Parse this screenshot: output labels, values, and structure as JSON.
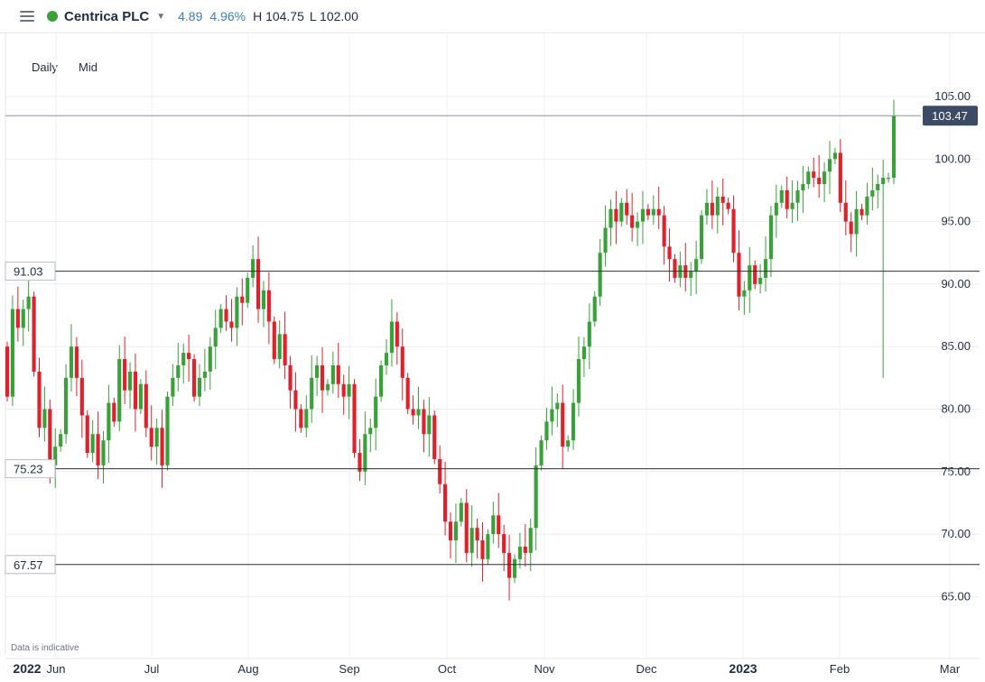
{
  "header": {
    "instrument": "Centrica PLC",
    "change": "4.89",
    "change_pct": "4.96%",
    "high_label": "H 104.75",
    "low_label": "L 102.00",
    "status_color": "#3aa13a"
  },
  "controls": {
    "interval": "Daily",
    "price_type": "Mid"
  },
  "footer": {
    "indicative": "Data is indicative"
  },
  "colors": {
    "up": "#3aa13a",
    "down": "#e0202a",
    "current_price_bg": "#3d4a66"
  },
  "chart_data": {
    "type": "candlestick",
    "ylim": [
      62,
      109
    ],
    "y_ticks": [
      "65.00",
      "70.00",
      "75.00",
      "80.00",
      "85.00",
      "90.00",
      "95.00",
      "100.00",
      "105.00"
    ],
    "x_labels": [
      "2022",
      "Jun",
      "Jul",
      "Aug",
      "Sep",
      "Oct",
      "Nov",
      "Dec",
      "2023",
      "Feb",
      "Mar"
    ],
    "current_price": 103.47,
    "current_price_label": "103.47",
    "levels": [
      {
        "value": 91.03,
        "label": "91.03"
      },
      {
        "value": 75.23,
        "label": "75.23"
      },
      {
        "value": 67.57,
        "label": "67.57"
      }
    ],
    "closes": [
      81.0,
      88.0,
      86.5,
      88.0,
      89.0,
      83.0,
      78.5,
      80.0,
      75.5,
      77.0,
      78.0,
      82.5,
      85.0,
      82.5,
      79.5,
      76.5,
      78.0,
      75.5,
      77.5,
      80.5,
      79.0,
      84.0,
      81.5,
      83.0,
      80.0,
      82.0,
      78.5,
      77.0,
      78.5,
      75.5,
      81.0,
      82.5,
      83.5,
      84.5,
      84.0,
      81.0,
      82.5,
      83.0,
      85.0,
      86.5,
      88.0,
      87.0,
      86.5,
      89.0,
      88.5,
      90.5,
      92.0,
      88.0,
      89.5,
      87.0,
      84.0,
      86.0,
      83.5,
      81.5,
      80.0,
      78.5,
      80.0,
      82.5,
      83.5,
      81.5,
      82.0,
      83.5,
      82.0,
      81.0,
      82.0,
      76.5,
      75.0,
      78.0,
      78.5,
      81.0,
      83.5,
      84.5,
      87.0,
      85.0,
      82.5,
      80.0,
      79.5,
      80.0,
      78.0,
      79.5,
      76.0,
      74.0,
      71.0,
      69.5,
      71.0,
      72.5,
      68.5,
      70.5,
      69.5,
      68.0,
      70.0,
      71.5,
      70.0,
      68.5,
      66.5,
      68.0,
      69.0,
      68.5,
      70.5,
      75.5,
      77.5,
      79.0,
      80.0,
      80.5,
      77.0,
      77.5,
      80.5,
      84.0,
      85.0,
      87.0,
      89.0,
      92.5,
      94.5,
      96.0,
      95.0,
      96.5,
      95.5,
      94.5,
      95.0,
      96.0,
      95.5,
      96.0,
      95.5,
      93.0,
      92.0,
      90.5,
      91.5,
      90.5,
      91.0,
      92.0,
      95.5,
      96.5,
      95.5,
      97.0,
      96.5,
      96.0,
      92.5,
      89.0,
      89.5,
      91.5,
      90.0,
      90.5,
      92.0,
      95.5,
      96.5,
      97.5,
      96.0,
      96.5,
      97.5,
      98.0,
      99.0,
      98.5,
      98.0,
      99.0,
      100.0,
      100.5,
      96.5,
      95.0,
      94.0,
      96.0,
      95.5,
      97.0,
      97.5,
      98.0,
      98.5,
      98.5,
      103.47
    ]
  }
}
